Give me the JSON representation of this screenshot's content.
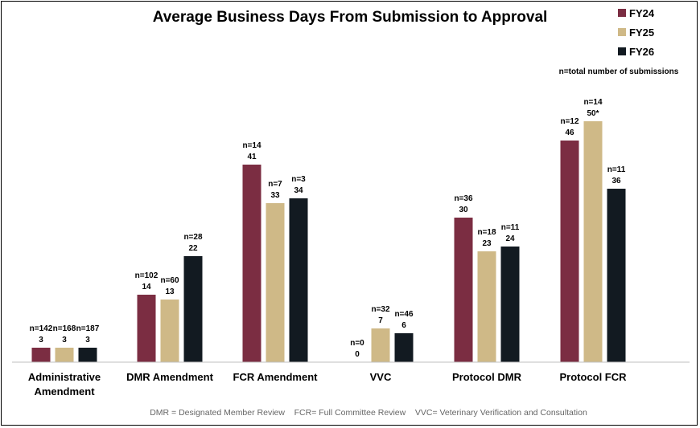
{
  "chart_data": {
    "type": "bar",
    "title": "Average Business Days From Submission to Approval",
    "note": "n=total number of submissions",
    "categories": [
      [
        "Administrative",
        "Amendment"
      ],
      [
        "DMR Amendment"
      ],
      [
        "FCR Amendment"
      ],
      [
        "VVC"
      ],
      [
        "Protocol DMR"
      ],
      [
        "Protocol FCR"
      ]
    ],
    "series": [
      {
        "name": "FY24",
        "color": "#7b2d42",
        "values": [
          3,
          14,
          41,
          0,
          30,
          46
        ],
        "value_labels": [
          "3",
          "14",
          "41",
          "0",
          "30",
          "46"
        ],
        "n_labels": [
          "n=142",
          "n=102",
          "n=14",
          "n=0",
          "n=36",
          "n=12"
        ]
      },
      {
        "name": "FY25",
        "color": "#cfb987",
        "values": [
          3,
          13,
          33,
          7,
          23,
          50
        ],
        "value_labels": [
          "3",
          "13",
          "33",
          "7",
          "23",
          "50*"
        ],
        "n_labels": [
          "n=168",
          "n=60",
          "n=7",
          "n=32",
          "n=18",
          "n=14"
        ]
      },
      {
        "name": "FY26",
        "color": "#121a21",
        "values": [
          3,
          22,
          34,
          6,
          24,
          36
        ],
        "value_labels": [
          "3",
          "22",
          "34",
          "6",
          "24",
          "36"
        ],
        "n_labels": [
          "n=187",
          "n=28",
          "n=3",
          "n=46",
          "n=11",
          "n=11"
        ]
      }
    ],
    "ylim": [
      0,
      55
    ],
    "grid": false,
    "legend_position": "top-right",
    "footer": "DMR = Designated Member Review    FCR= Full Committee Review    VVC= Veterinary Verification and Consultation"
  }
}
